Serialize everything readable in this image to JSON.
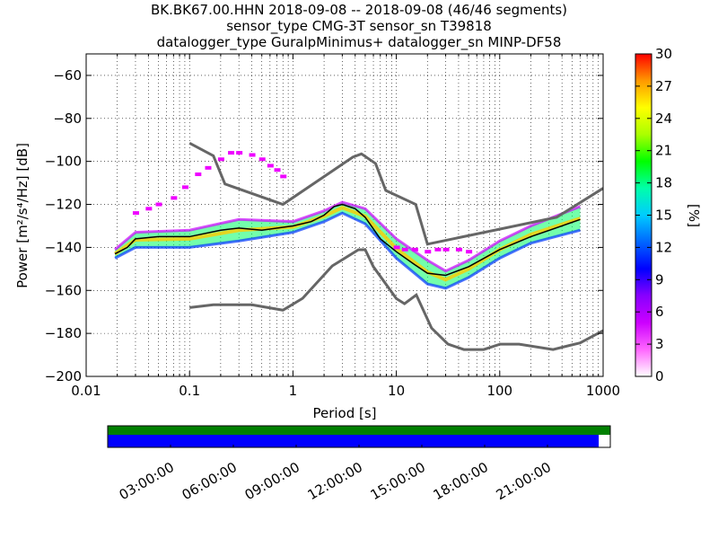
{
  "chart_data": [
    {
      "type": "heatmap",
      "title_lines": [
        "BK.BK67.00.HHN   2018-09-08 -- 2018-09-08  (46/46 segments)",
        "sensor_type CMG-3T sensor_sn T39818",
        "datalogger_type GuralpMinimus+ datalogger_sn MINP-DF58"
      ],
      "xlabel": "Period [s]",
      "ylabel": "Power [m²/s⁴/Hz] [dB]",
      "x_scale": "log",
      "xlim": [
        0.01,
        1000
      ],
      "ylim": [
        -200,
        -50
      ],
      "xticks": [
        {
          "value": 0.01,
          "label": "0.01"
        },
        {
          "value": 0.1,
          "label": "0.1"
        },
        {
          "value": 1,
          "label": "1"
        },
        {
          "value": 10,
          "label": "10"
        },
        {
          "value": 100,
          "label": "100"
        },
        {
          "value": 1000,
          "label": "1000"
        }
      ],
      "yticks": [
        -60,
        -80,
        -100,
        -120,
        -140,
        -160,
        -180,
        -200
      ],
      "grid": true,
      "colorbar": {
        "label": "[%]",
        "min": 0,
        "max": 30,
        "ticks": [
          0,
          3,
          6,
          9,
          12,
          15,
          18,
          21,
          24,
          27,
          30
        ],
        "colormap": [
          "#ffffff",
          "#ff66ff",
          "#cc00ff",
          "#8800ff",
          "#0000ff",
          "#0066ff",
          "#00ccff",
          "#00ffaa",
          "#00ff00",
          "#aaff00",
          "#ffff00",
          "#ff9900",
          "#ff0000"
        ]
      },
      "series": [
        {
          "role": "new_high_noise_model",
          "color": "#666666",
          "x": [
            0.1,
            0.17,
            0.22,
            0.8,
            3.8,
            4.6,
            6.3,
            7.9,
            15.4,
            20,
            354.8,
            1000
          ],
          "y": [
            -91.5,
            -97.4,
            -110.5,
            -120,
            -98,
            -96.5,
            -101,
            -113.5,
            -120,
            -138.5,
            -126,
            -112.5
          ]
        },
        {
          "role": "new_low_noise_model",
          "color": "#666666",
          "x": [
            0.1,
            0.17,
            0.4,
            0.8,
            1.24,
            2.4,
            4.3,
            5,
            6,
            10,
            12,
            15.6,
            21.9,
            31.6,
            45,
            70,
            101,
            154,
            328,
            600,
            1000
          ],
          "y": [
            -168,
            -166.7,
            -166.7,
            -169.2,
            -163.7,
            -148.6,
            -141.1,
            -141.1,
            -149,
            -163.8,
            -166.2,
            -162.1,
            -177.5,
            -185,
            -187.5,
            -187.5,
            -185,
            -185,
            -187.5,
            -184.4,
            -178.7
          ]
        },
        {
          "role": "mode",
          "color": "#000000",
          "x": [
            0.019,
            0.025,
            0.03,
            0.05,
            0.1,
            0.2,
            0.3,
            0.5,
            1,
            1.5,
            2,
            2.5,
            3,
            4,
            5,
            7,
            10,
            15,
            20,
            30,
            50,
            100,
            200,
            400,
            600
          ],
          "y": [
            -143,
            -140,
            -136,
            -135,
            -135,
            -132,
            -131,
            -132,
            -130,
            -128,
            -125,
            -121,
            -120,
            -122,
            -126,
            -136,
            -142,
            -148,
            -152,
            -153,
            -149,
            -141,
            -135,
            -130,
            -127
          ]
        }
      ],
      "density_bands": [
        {
          "x": [
            0.019,
            0.03,
            0.1,
            0.3,
            1,
            2,
            3,
            5,
            10,
            20,
            30,
            50,
            100,
            200,
            600
          ],
          "lower": [
            -145,
            -140,
            -140,
            -137,
            -133,
            -128,
            -124,
            -129,
            -145,
            -157,
            -159,
            -154,
            -145,
            -138,
            -132
          ],
          "upper": [
            -141,
            -133,
            -132,
            -127,
            -128,
            -123,
            -119,
            -122,
            -136,
            -146,
            -151,
            -146,
            -137,
            -130,
            -121
          ]
        }
      ],
      "scatter_outliers": {
        "color_percent": 2,
        "x": [
          0.03,
          0.04,
          0.05,
          0.07,
          0.09,
          0.12,
          0.15,
          0.2,
          0.25,
          0.3,
          0.4,
          0.5,
          0.6,
          0.7,
          0.8,
          10,
          12,
          15,
          20,
          25,
          30,
          40,
          50
        ],
        "y": [
          -124,
          -122,
          -120,
          -117,
          -112,
          -106,
          -103,
          -99,
          -96,
          -96,
          -97,
          -99,
          -102,
          -104,
          -107,
          -140,
          -141,
          -141,
          -142,
          -141,
          -141,
          -141,
          -142
        ]
      }
    },
    {
      "type": "bar",
      "role": "data_availability",
      "xticks": [
        "03:00:00",
        "06:00:00",
        "09:00:00",
        "12:00:00",
        "15:00:00",
        "18:00:00",
        "21:00:00"
      ],
      "tracks": [
        {
          "name": "",
          "color": "#008000",
          "coverage": 1.0
        },
        {
          "name": "",
          "color": "#0000ff",
          "coverage": 0.977
        }
      ]
    }
  ]
}
